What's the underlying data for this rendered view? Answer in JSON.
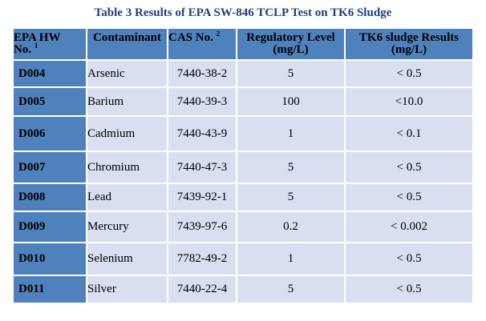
{
  "title": "Table 3 Results of EPA SW-846 TCLP Test on TK6 Sludge",
  "columns": {
    "code": {
      "line1": "EPA HW",
      "line2": "No.",
      "sup": "1"
    },
    "contaminant": "Contaminant",
    "cas": {
      "text": "CAS No.",
      "sup": "2"
    },
    "level": {
      "line1": "Regulatory Level",
      "line2": "(mg/L)"
    },
    "result": {
      "line1": "TK6 sludge Results",
      "line2": "(mg/L)"
    }
  },
  "rows": [
    {
      "code": "D004",
      "contaminant": "Arsenic",
      "cas": "7440-38-2",
      "level": "5",
      "result": "< 0.5"
    },
    {
      "code": "D005",
      "contaminant": "Barium",
      "cas": "7440-39-3",
      "level": "100",
      "result": "<10.0"
    },
    {
      "code": "D006",
      "contaminant": "Cadmium",
      "cas": "7440-43-9",
      "level": "1",
      "result": "< 0.1"
    },
    {
      "code": "D007",
      "contaminant": "Chromium",
      "cas": "7440-47-3",
      "level": "5",
      "result": "< 0.5"
    },
    {
      "code": "D008",
      "contaminant": "Lead",
      "cas": "7439-92-1",
      "level": "5",
      "result": "< 0.5"
    },
    {
      "code": "D009",
      "contaminant": "Mercury",
      "cas": "7439-97-6",
      "level": "0.2",
      "result": "< 0.002"
    },
    {
      "code": "D010",
      "contaminant": "Selenium",
      "cas": "7782-49-2",
      "level": "1",
      "result": "< 0.5"
    },
    {
      "code": "D011",
      "contaminant": "Silver",
      "cas": "7440-22-4",
      "level": "5",
      "result": "< 0.5"
    }
  ]
}
